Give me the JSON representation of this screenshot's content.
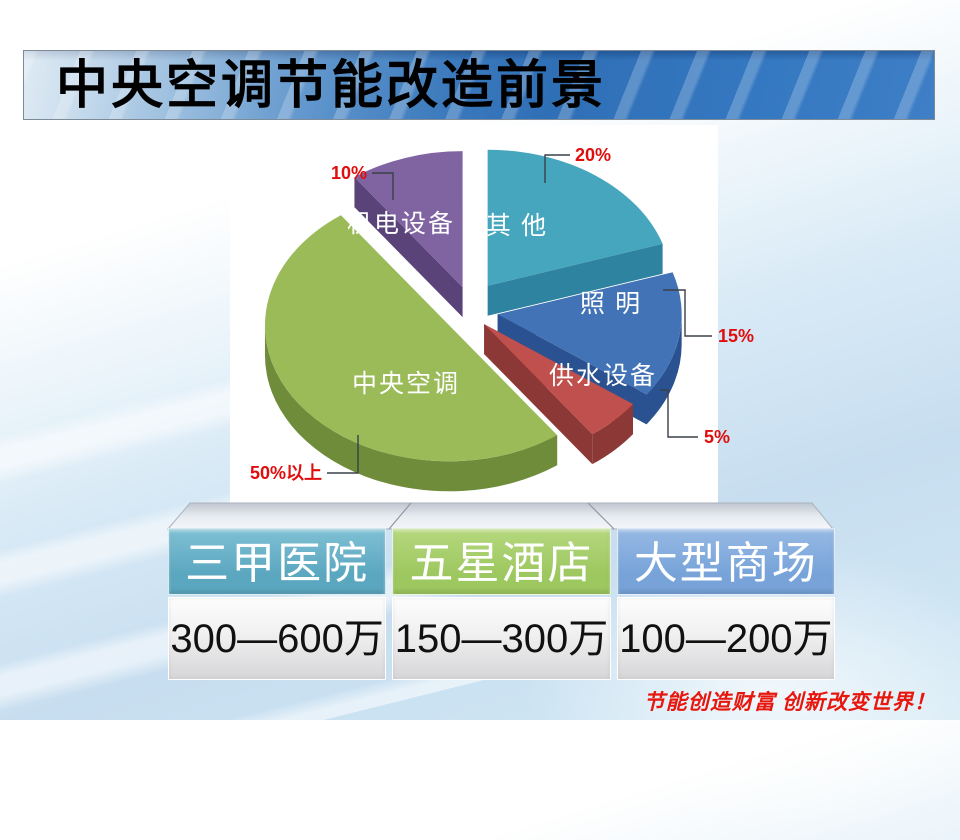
{
  "slide": {
    "title": "中央空调节能改造前景",
    "slogan": "节能创造财富 创新改变世界！"
  },
  "chart_data": {
    "type": "pie",
    "categories": [
      "其他",
      "照明",
      "供水设备",
      "中央空调",
      "机电设备"
    ],
    "values": [
      20,
      15,
      5,
      50,
      10
    ],
    "slices": [
      {
        "label": "其 他",
        "value": 20,
        "percent_label": "20%",
        "color": "#45A6BE",
        "side_color": "#2E84A0"
      },
      {
        "label": "照 明",
        "value": 15,
        "percent_label": "15%",
        "color": "#4173B6",
        "side_color": "#2A5190"
      },
      {
        "label": "供水设备",
        "value": 5,
        "percent_label": "5%",
        "color": "#C0504D",
        "side_color": "#8C3836"
      },
      {
        "label": "中央空调",
        "value": 50,
        "percent_label": "50%以上",
        "color": "#9BBB59",
        "side_color": "#6E8C3A"
      },
      {
        "label": "机电设备",
        "value": 10,
        "percent_label": "10%",
        "color": "#8064A2",
        "side_color": "#5A4379"
      }
    ],
    "legend": "none",
    "label_color": "#ffffff",
    "percent_color": "#e00d0d",
    "callout_line_color": "#3a4048"
  },
  "table": {
    "columns": [
      {
        "header": "三甲医院",
        "value": "300—600万",
        "header_color": "#5BA7C0",
        "header_color_top": "#7FC0D4"
      },
      {
        "header": "五星酒店",
        "value": "150—300万",
        "header_color": "#9DC75F",
        "header_color_top": "#B5D87E"
      },
      {
        "header": "大型商场",
        "value": "100—200万",
        "header_color": "#77A3D9",
        "header_color_top": "#96B9E4"
      }
    ]
  }
}
